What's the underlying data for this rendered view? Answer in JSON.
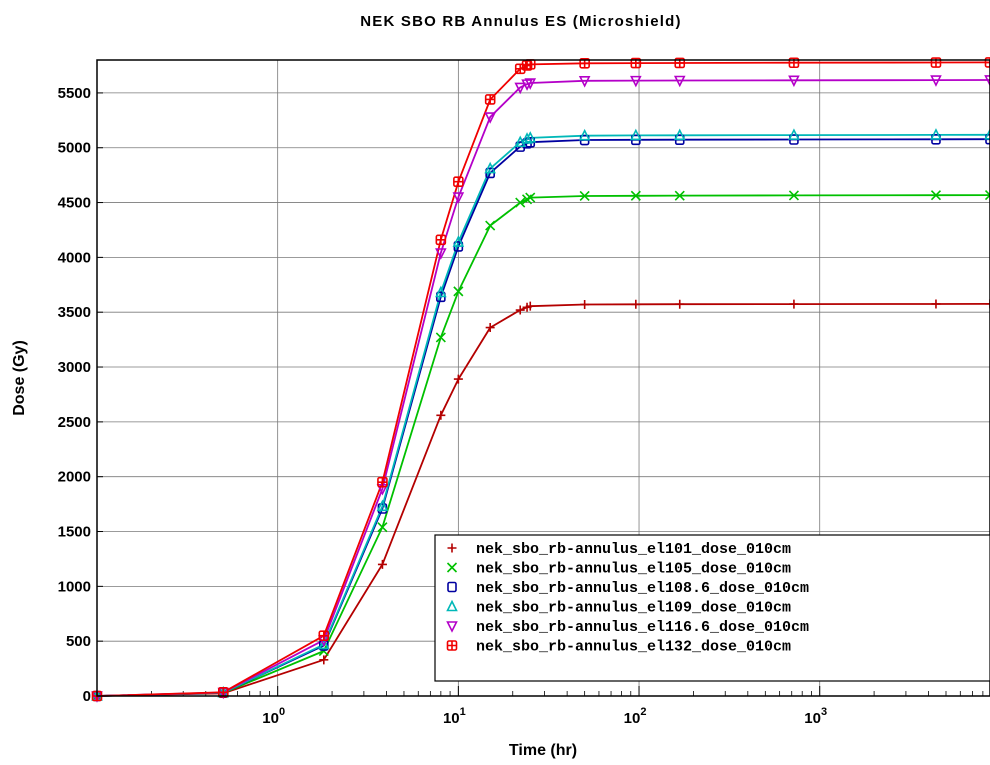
{
  "chart_data": {
    "type": "line",
    "title": "NEK SBO RB Annulus ES (Microshield)",
    "xlabel": "Time (hr)",
    "ylabel": "Dose (Gy)",
    "x_scale": "log",
    "xlim": [
      0.1,
      8760
    ],
    "ylim": [
      0,
      5800
    ],
    "grid": true,
    "legend_position": "bottom-right",
    "x_ticks": [
      {
        "base": "10",
        "exp": "0",
        "value": 1
      },
      {
        "base": "10",
        "exp": "1",
        "value": 10
      },
      {
        "base": "10",
        "exp": "2",
        "value": 100
      },
      {
        "base": "10",
        "exp": "3",
        "value": 1000
      }
    ],
    "y_ticks": [
      0,
      500,
      1000,
      1500,
      2000,
      2500,
      3000,
      3500,
      4000,
      4500,
      5000,
      5500
    ],
    "x": [
      0.1,
      0.5,
      1.8,
      3.8,
      8,
      10,
      15,
      22,
      24,
      25,
      50,
      96,
      168,
      720,
      4400,
      8760
    ],
    "series": [
      {
        "name": "nek_sbo_rb-annulus_el101_dose_010cm",
        "color": "#b40000",
        "marker": "plus",
        "values": [
          0,
          25,
          330,
          1200,
          2560,
          2890,
          3360,
          3520,
          3545,
          3555,
          3570,
          3572,
          3573,
          3574,
          3575,
          3576
        ]
      },
      {
        "name": "nek_sbo_rb-annulus_el105_dose_010cm",
        "color": "#00c000",
        "marker": "x",
        "values": [
          0,
          28,
          410,
          1540,
          3270,
          3690,
          4290,
          4500,
          4530,
          4545,
          4560,
          4562,
          4563,
          4565,
          4567,
          4568
        ]
      },
      {
        "name": "nek_sbo_rb-annulus_el108.6_dose_010cm",
        "color": "#0000a0",
        "marker": "square",
        "values": [
          0,
          30,
          460,
          1710,
          3640,
          4100,
          4770,
          5010,
          5040,
          5050,
          5070,
          5072,
          5073,
          5075,
          5077,
          5078
        ]
      },
      {
        "name": "nek_sbo_rb-annulus_el109_dose_010cm",
        "color": "#00b8b8",
        "marker": "triangle-up",
        "values": [
          0,
          30,
          470,
          1730,
          3680,
          4140,
          4810,
          5050,
          5080,
          5090,
          5110,
          5112,
          5113,
          5115,
          5117,
          5118
        ]
      },
      {
        "name": "nek_sbo_rb-annulus_el116.6_dose_010cm",
        "color": "#b400c8",
        "marker": "triangle-down",
        "values": [
          0,
          32,
          510,
          1890,
          4040,
          4550,
          5280,
          5550,
          5580,
          5590,
          5610,
          5612,
          5613,
          5615,
          5617,
          5618
        ]
      },
      {
        "name": "nek_sbo_rb-annulus_el132_dose_010cm",
        "color": "#f00000",
        "marker": "boxed-plus",
        "values": [
          0,
          34,
          550,
          1950,
          4160,
          4690,
          5440,
          5720,
          5750,
          5760,
          5770,
          5772,
          5773,
          5775,
          5777,
          5778
        ]
      }
    ]
  }
}
